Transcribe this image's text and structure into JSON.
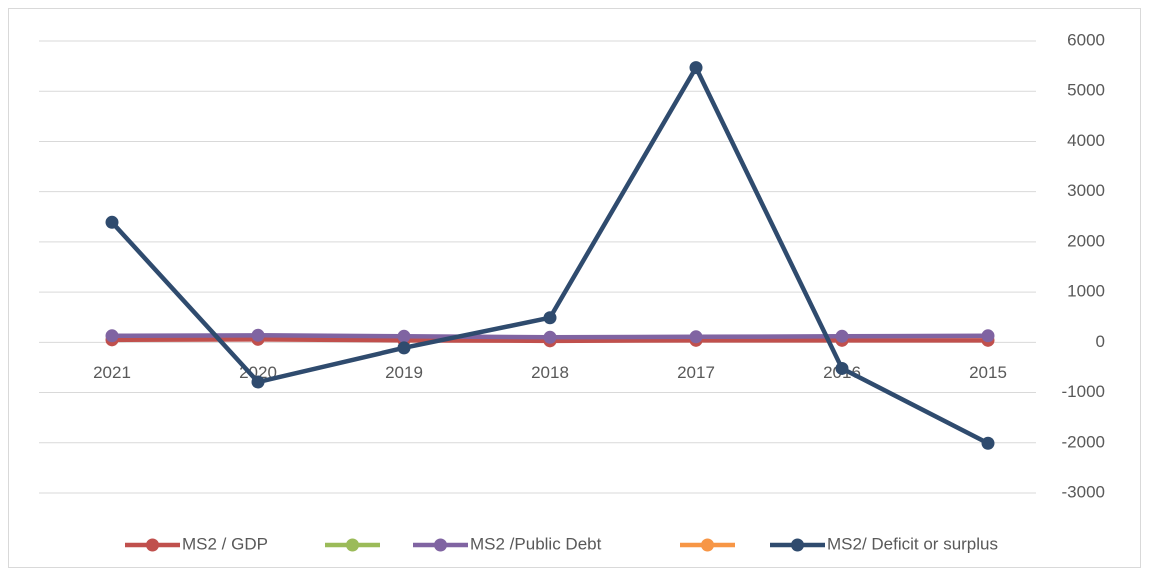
{
  "chart_data": {
    "type": "line",
    "categories": [
      "2021",
      "2020",
      "2019",
      "2018",
      "2017",
      "2016",
      "2015"
    ],
    "series": [
      {
        "name": "MS2 / GDP",
        "color": "#c0504d",
        "values": [
          50,
          60,
          40,
          30,
          40,
          40,
          40
        ]
      },
      {
        "color": "#9bbb59",
        "values": [
          null,
          null,
          null,
          null,
          null,
          null,
          null
        ]
      },
      {
        "name": "MS2 /Public Debt",
        "color": "#8064a2",
        "values": [
          130,
          140,
          120,
          100,
          110,
          120,
          130
        ]
      },
      {
        "color": "#f79646",
        "values": [
          null,
          null,
          null,
          null,
          null,
          null,
          null
        ]
      },
      {
        "name": "MS2/ Deficit or surplus",
        "color": "#2f4b6e",
        "values": [
          2390,
          -790,
          -110,
          490,
          5470,
          -520,
          -2010
        ]
      }
    ],
    "ylim": [
      -3000,
      6000
    ],
    "yticks": [
      -3000,
      -2000,
      -1000,
      0,
      1000,
      2000,
      3000,
      4000,
      5000,
      6000
    ],
    "grid": true,
    "legend": "bottom",
    "y_axis_side": "right"
  }
}
